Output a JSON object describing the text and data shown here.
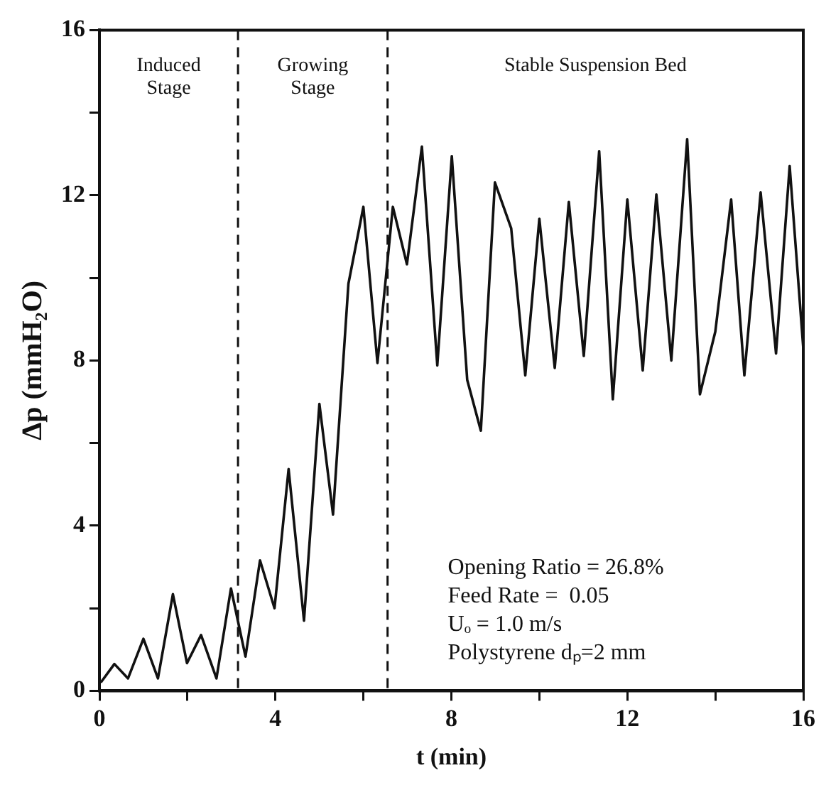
{
  "chart_data": {
    "type": "line",
    "xlabel": "t (min)",
    "ylabel": "Δp (mmH₂O)",
    "x": [
      0.03,
      0.34,
      0.65,
      1.0,
      1.33,
      1.67,
      1.99,
      2.31,
      2.66,
      2.99,
      3.32,
      3.65,
      3.98,
      4.3,
      4.65,
      5.0,
      5.31,
      5.66,
      6.0,
      6.32,
      6.67,
      6.99,
      7.33,
      7.68,
      8.01,
      8.36,
      8.67,
      8.99,
      9.36,
      9.68,
      10.0,
      10.35,
      10.67,
      11.01,
      11.36,
      11.67,
      12.0,
      12.35,
      12.66,
      13.0,
      13.36,
      13.65,
      14.0,
      14.36,
      14.66,
      15.03,
      15.38,
      15.69,
      16.0
    ],
    "series": [
      {
        "color": "#111111",
        "values": [
          0.2,
          0.65,
          0.3,
          1.26,
          0.3,
          2.34,
          0.67,
          1.35,
          0.3,
          2.48,
          0.83,
          3.16,
          2.0,
          5.37,
          1.7,
          6.95,
          4.27,
          9.86,
          11.72,
          7.94,
          11.72,
          10.33,
          13.18,
          7.88,
          12.95,
          7.53,
          6.3,
          12.31,
          11.2,
          7.64,
          11.43,
          7.82,
          11.84,
          8.11,
          13.07,
          7.06,
          11.9,
          7.76,
          12.02,
          8.0,
          13.36,
          7.18,
          8.7,
          11.9,
          7.64,
          12.07,
          8.17,
          12.71,
          8.29
        ]
      }
    ],
    "xlim": [
      0,
      16
    ],
    "ylim": [
      0,
      16
    ],
    "xticks": [
      0,
      {
        "value": 2,
        "label": null
      },
      4,
      {
        "value": 6,
        "label": null
      },
      8,
      {
        "value": 10,
        "label": null
      },
      12,
      {
        "value": 14,
        "label": null
      },
      16
    ],
    "yticks": [
      0,
      {
        "value": 2,
        "label": null
      },
      4,
      {
        "value": 6,
        "label": null
      },
      8,
      {
        "value": 10,
        "label": null
      },
      12,
      {
        "value": 14,
        "label": null
      },
      16
    ],
    "grid": false,
    "legend": false,
    "marker": "none",
    "line_style": "solid",
    "ref_lines": [
      {
        "axis": "x",
        "value": 3.15,
        "line_style": "dashed",
        "color": "#111111"
      },
      {
        "axis": "x",
        "value": 6.55,
        "line_style": "dashed",
        "color": "#111111"
      }
    ],
    "annotations": [
      "Induced\nStage",
      "Growing\nStage",
      "Stable Suspension Bed",
      "Opening Ratio = 26.8%\nFeed Rate =  0.05\nUₒ = 1.0 m/s\nPolystyrene dₚ=2 mm"
    ]
  }
}
